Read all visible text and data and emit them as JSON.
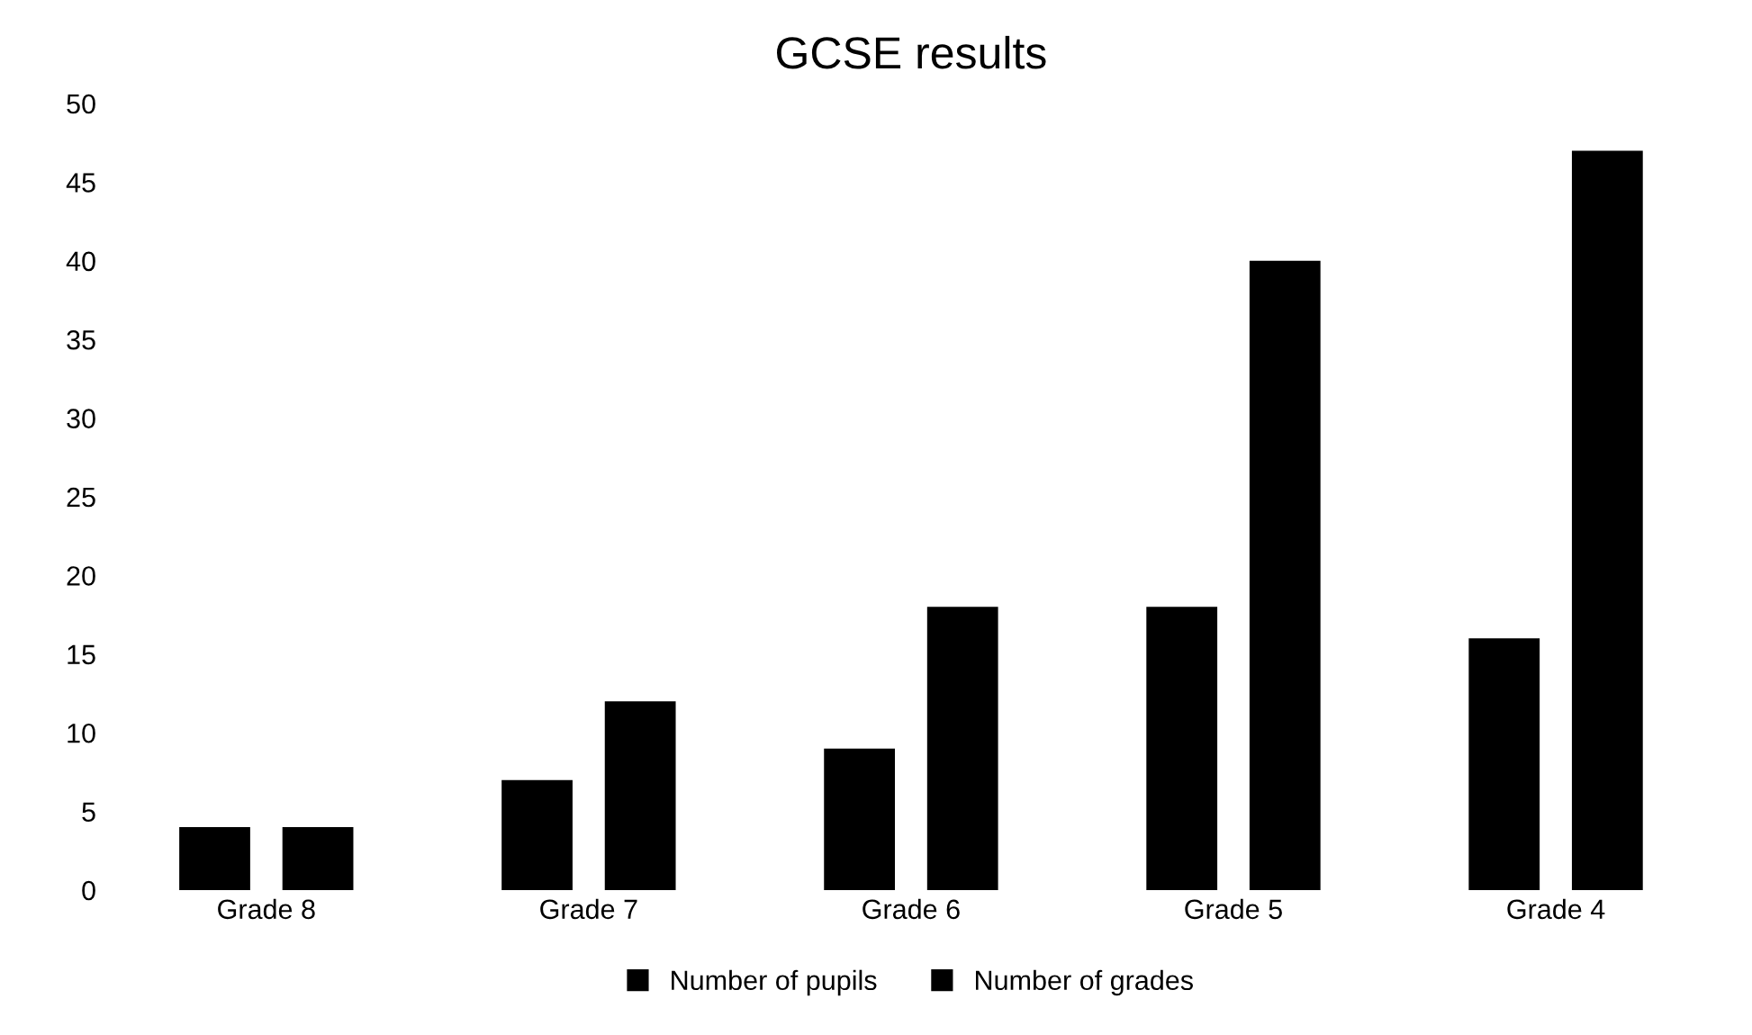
{
  "chart_data": {
    "type": "bar",
    "title": "GCSE results",
    "categories": [
      "Grade 8",
      "Grade 7",
      "Grade 6",
      "Grade 5",
      "Grade 4"
    ],
    "series": [
      {
        "name": "Number of pupils",
        "color": "#000000",
        "values": [
          4,
          7,
          9,
          18,
          16
        ]
      },
      {
        "name": "Number of grades",
        "color": "#000000",
        "values": [
          4,
          12,
          18,
          40,
          47
        ]
      }
    ],
    "ylim": [
      0,
      50
    ],
    "yticks": [
      0,
      5,
      10,
      15,
      20,
      25,
      30,
      35,
      40,
      45,
      50
    ],
    "grid": false,
    "legend": "bottom"
  }
}
